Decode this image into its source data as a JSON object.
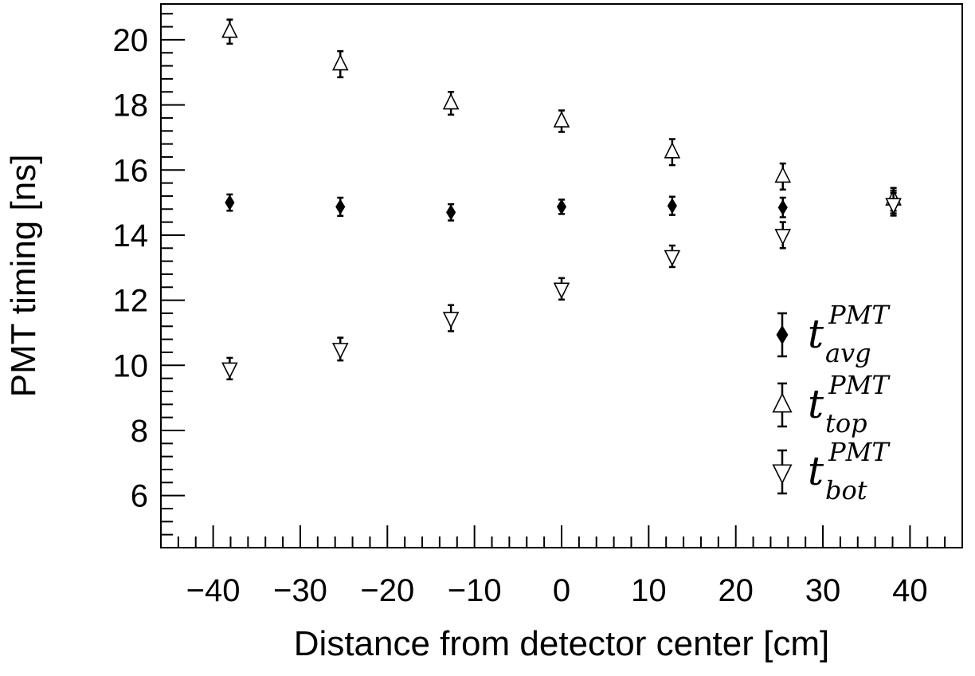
{
  "chart_data": {
    "type": "scatter",
    "xlabel": "Distance from detector center [cm]",
    "ylabel": "PMT timing [ns]",
    "xlim": [
      -46,
      46
    ],
    "ylim": [
      4.4,
      21.1
    ],
    "x_ticks": [
      -40,
      -30,
      -20,
      -10,
      0,
      10,
      20,
      30,
      40
    ],
    "x_tick_labels": [
      "−40",
      "−30",
      "−20",
      "−10",
      "0",
      "10",
      "20",
      "30",
      "40"
    ],
    "y_ticks": [
      6,
      8,
      10,
      12,
      14,
      16,
      18,
      20
    ],
    "y_tick_labels": [
      "6",
      "8",
      "10",
      "12",
      "14",
      "16",
      "18",
      "20"
    ],
    "x_minor_step": 2,
    "y_minor_step": 0.4,
    "grid": false,
    "legend_position": "right",
    "series": [
      {
        "key": "avg",
        "marker": "filled-diamond",
        "legend": {
          "main": "t",
          "sup": "PMT",
          "sub": "avg"
        },
        "points": [
          {
            "x": -38.1,
            "y": 15.0,
            "err": 0.25
          },
          {
            "x": -25.4,
            "y": 14.87,
            "err": 0.28
          },
          {
            "x": -12.7,
            "y": 14.7,
            "err": 0.25
          },
          {
            "x": 0.0,
            "y": 14.87,
            "err": 0.22
          },
          {
            "x": 12.7,
            "y": 14.9,
            "err": 0.28
          },
          {
            "x": 25.4,
            "y": 14.85,
            "err": 0.3
          },
          {
            "x": 38.1,
            "y": 15.02,
            "err": 0.35
          }
        ]
      },
      {
        "key": "top",
        "marker": "open-triangle-up",
        "legend": {
          "main": "t",
          "sup": "PMT",
          "sub": "top"
        },
        "points": [
          {
            "x": -38.1,
            "y": 20.25,
            "err": 0.37
          },
          {
            "x": -25.4,
            "y": 19.25,
            "err": 0.4
          },
          {
            "x": -12.7,
            "y": 18.05,
            "err": 0.35
          },
          {
            "x": 0.0,
            "y": 17.5,
            "err": 0.33
          },
          {
            "x": 12.7,
            "y": 16.55,
            "err": 0.4
          },
          {
            "x": 25.4,
            "y": 15.8,
            "err": 0.4
          },
          {
            "x": 38.1,
            "y": 15.1,
            "err": 0.35
          }
        ]
      },
      {
        "key": "bot",
        "marker": "open-triangle-down",
        "legend": {
          "main": "t",
          "sup": "PMT",
          "sub": "bot"
        },
        "points": [
          {
            "x": -38.1,
            "y": 9.9,
            "err": 0.33
          },
          {
            "x": -25.4,
            "y": 10.5,
            "err": 0.35
          },
          {
            "x": -12.7,
            "y": 11.45,
            "err": 0.4
          },
          {
            "x": 0.0,
            "y": 12.35,
            "err": 0.33
          },
          {
            "x": 12.7,
            "y": 13.35,
            "err": 0.33
          },
          {
            "x": 25.4,
            "y": 14.0,
            "err": 0.4
          },
          {
            "x": 38.1,
            "y": 14.95,
            "err": 0.35
          }
        ]
      }
    ]
  }
}
